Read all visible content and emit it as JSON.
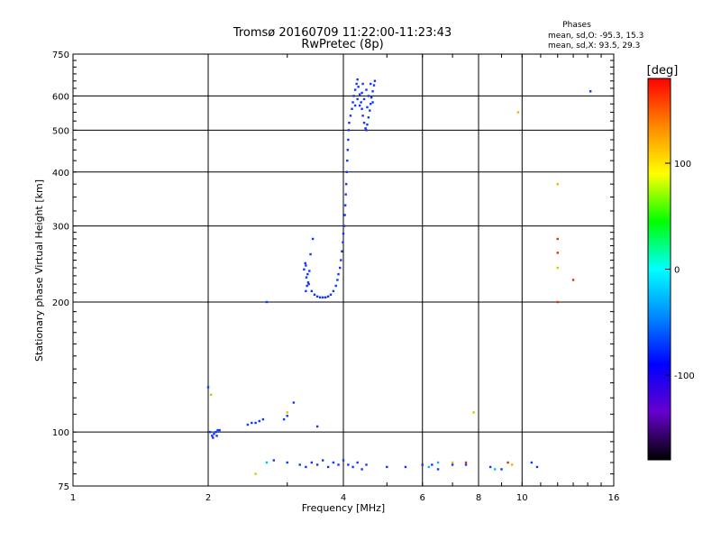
{
  "chart_data": {
    "type": "scatter",
    "title": "Tromsø 20160709 11:22:00-11:23:43",
    "subtitle": "RwPretec (8p)",
    "xlabel": "Frequency [MHz]",
    "ylabel": "Stationary phase Virtual Height [km]",
    "x_scale": "log",
    "y_scale": "log",
    "xlim": [
      1,
      16
    ],
    "ylim": [
      75,
      750
    ],
    "x_ticks": [
      1,
      2,
      4,
      6,
      8,
      10,
      16
    ],
    "y_ticks": [
      75,
      100,
      200,
      300,
      400,
      500,
      600,
      750
    ],
    "grid": true,
    "stats": {
      "heading": "Phases",
      "line_o": "mean, sd,O: -95.3, 15.3",
      "line_x": "mean, sd,X:  93.5, 29.3"
    },
    "colorbar": {
      "label": "[deg]",
      "min": -180,
      "max": 180,
      "ticks": [
        100,
        0,
        -100
      ],
      "colors": [
        "#ff0000",
        "#ff8800",
        "#ffff00",
        "#00ff00",
        "#00ffff",
        "#0088ff",
        "#0000ff",
        "#6600cc",
        "#000000"
      ]
    },
    "series": [
      {
        "name": "",
        "color": "#1133ff",
        "points": [
          [
            2.0,
            127
          ],
          [
            2.02,
            100
          ],
          [
            2.04,
            98
          ],
          [
            2.06,
            99
          ],
          [
            2.08,
            100
          ],
          [
            2.1,
            101
          ],
          [
            2.12,
            101
          ],
          [
            2.05,
            97
          ],
          [
            2.09,
            98
          ],
          [
            2.45,
            104
          ],
          [
            2.5,
            105
          ],
          [
            2.55,
            105
          ],
          [
            2.6,
            106
          ],
          [
            2.65,
            107
          ],
          [
            2.7,
            200
          ],
          [
            2.95,
            107
          ],
          [
            3.0,
            109
          ],
          [
            3.1,
            117
          ],
          [
            3.5,
            103
          ],
          [
            3.27,
            238
          ],
          [
            3.29,
            246
          ],
          [
            3.3,
            243
          ],
          [
            3.31,
            228
          ],
          [
            3.33,
            232
          ],
          [
            3.35,
            220
          ],
          [
            3.36,
            236
          ],
          [
            3.38,
            258
          ],
          [
            3.42,
            280
          ],
          [
            3.3,
            212
          ],
          [
            3.32,
            218
          ],
          [
            3.34,
            222
          ],
          [
            3.4,
            212
          ],
          [
            3.45,
            208
          ],
          [
            3.5,
            206
          ],
          [
            3.55,
            205
          ],
          [
            3.6,
            205
          ],
          [
            3.65,
            205
          ],
          [
            3.7,
            206
          ],
          [
            3.75,
            208
          ],
          [
            3.8,
            212
          ],
          [
            3.85,
            218
          ],
          [
            3.88,
            225
          ],
          [
            3.9,
            232
          ],
          [
            3.93,
            240
          ],
          [
            3.95,
            250
          ],
          [
            3.97,
            262
          ],
          [
            3.99,
            275
          ],
          [
            4.0,
            288
          ],
          [
            4.02,
            300
          ],
          [
            4.03,
            318
          ],
          [
            4.04,
            335
          ],
          [
            4.05,
            355
          ],
          [
            4.06,
            375
          ],
          [
            4.07,
            400
          ],
          [
            4.08,
            425
          ],
          [
            4.09,
            450
          ],
          [
            4.1,
            475
          ],
          [
            4.11,
            500
          ],
          [
            4.12,
            520
          ],
          [
            4.15,
            540
          ],
          [
            4.18,
            560
          ],
          [
            4.2,
            580
          ],
          [
            4.22,
            600
          ],
          [
            4.25,
            620
          ],
          [
            4.28,
            640
          ],
          [
            4.3,
            655
          ],
          [
            4.32,
            630
          ],
          [
            4.35,
            605
          ],
          [
            4.38,
            580
          ],
          [
            4.4,
            560
          ],
          [
            4.42,
            540
          ],
          [
            4.45,
            520
          ],
          [
            4.48,
            505
          ],
          [
            4.5,
            500
          ],
          [
            4.52,
            515
          ],
          [
            4.55,
            535
          ],
          [
            4.58,
            555
          ],
          [
            4.6,
            575
          ],
          [
            4.62,
            595
          ],
          [
            4.65,
            615
          ],
          [
            4.68,
            635
          ],
          [
            4.7,
            650
          ],
          [
            4.3,
            590
          ],
          [
            4.35,
            570
          ],
          [
            4.4,
            610
          ],
          [
            4.45,
            590
          ],
          [
            4.5,
            620
          ],
          [
            4.55,
            600
          ],
          [
            4.6,
            640
          ],
          [
            4.65,
            580
          ],
          [
            4.25,
            570
          ],
          [
            4.42,
            640
          ],
          [
            4.52,
            565
          ],
          [
            14.2,
            615
          ],
          [
            2.8,
            86
          ],
          [
            3.0,
            85
          ],
          [
            3.2,
            84
          ],
          [
            3.3,
            83
          ],
          [
            3.4,
            85
          ],
          [
            3.5,
            84
          ],
          [
            3.6,
            86
          ],
          [
            3.7,
            83
          ],
          [
            3.8,
            85
          ],
          [
            3.9,
            84
          ],
          [
            4.0,
            86
          ],
          [
            4.1,
            84
          ],
          [
            4.2,
            83
          ],
          [
            4.3,
            85
          ],
          [
            4.4,
            82
          ],
          [
            4.5,
            84
          ],
          [
            5.0,
            83
          ],
          [
            5.5,
            83
          ],
          [
            6.0,
            84
          ],
          [
            6.3,
            84
          ],
          [
            6.5,
            82
          ],
          [
            7.0,
            84
          ],
          [
            7.5,
            84
          ],
          [
            8.5,
            83
          ],
          [
            9.0,
            82
          ],
          [
            10.5,
            85
          ],
          [
            10.8,
            83
          ]
        ]
      },
      {
        "name": "",
        "color": "#00bbee",
        "points": [
          [
            2.7,
            85
          ],
          [
            6.2,
            83
          ],
          [
            6.5,
            85
          ],
          [
            8.7,
            82
          ]
        ]
      },
      {
        "name": "",
        "color": "#cccc00",
        "points": [
          [
            2.03,
            122
          ],
          [
            2.55,
            80
          ],
          [
            3.0,
            111
          ],
          [
            7.8,
            111
          ],
          [
            12.0,
            240
          ]
        ]
      },
      {
        "name": "",
        "color": "#ffaa00",
        "points": [
          [
            9.8,
            550
          ],
          [
            12.0,
            375
          ],
          [
            7.0,
            85
          ],
          [
            9.5,
            84
          ]
        ]
      },
      {
        "name": "",
        "color": "#dd3300",
        "points": [
          [
            12.0,
            280
          ],
          [
            12.0,
            260
          ],
          [
            12.0,
            200
          ],
          [
            13.0,
            225
          ],
          [
            7.5,
            85
          ],
          [
            9.3,
            85
          ]
        ]
      }
    ]
  }
}
